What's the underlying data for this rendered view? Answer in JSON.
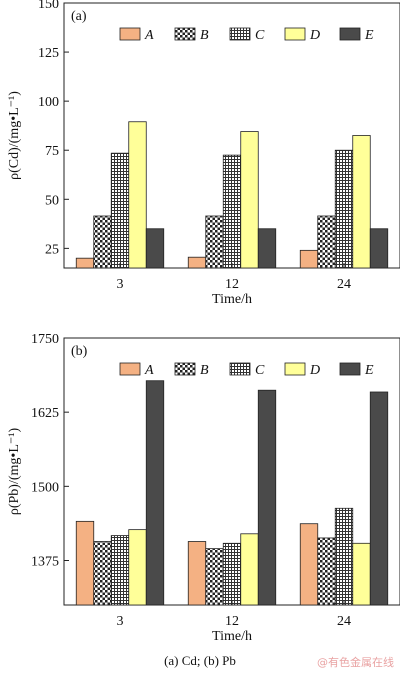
{
  "figure_caption": "(a) Cd; (b) Pb",
  "watermark": "@有色金属在线",
  "chart_data": [
    {
      "type": "bar",
      "panel_label": "(a)",
      "title": "",
      "xlabel": "Time/h",
      "ylabel": "ρ(Cd)/(mg•L⁻¹)",
      "categories": [
        "3",
        "12",
        "24"
      ],
      "ylim": [
        15,
        150
      ],
      "yticks": [
        25,
        50,
        75,
        100,
        125,
        150
      ],
      "legend_position": "top",
      "grid": false,
      "series": [
        {
          "name": "A",
          "color": "#f4b183",
          "pattern": "solid",
          "values": [
            20,
            20.5,
            24
          ]
        },
        {
          "name": "B",
          "color": "#ffffff",
          "pattern": "checker",
          "values": [
            41.5,
            41.5,
            41.5
          ]
        },
        {
          "name": "C",
          "color": "#ffffff",
          "pattern": "grid",
          "values": [
            73.5,
            72.5,
            75
          ]
        },
        {
          "name": "D",
          "color": "#ffff99",
          "pattern": "solid",
          "values": [
            89.5,
            84.5,
            82.5
          ]
        },
        {
          "name": "E",
          "color": "#4a4a4a",
          "pattern": "solid",
          "values": [
            35,
            35,
            35
          ]
        }
      ]
    },
    {
      "type": "bar",
      "panel_label": "(b)",
      "title": "",
      "xlabel": "Time/h",
      "ylabel": "ρ(Pb)/(mg•L⁻¹)",
      "categories": [
        "3",
        "12",
        "24"
      ],
      "ylim": [
        1300,
        1750
      ],
      "yticks": [
        1375,
        1500,
        1625,
        1750
      ],
      "legend_position": "top",
      "grid": false,
      "series": [
        {
          "name": "A",
          "color": "#f4b183",
          "pattern": "solid",
          "values": [
            1441,
            1407,
            1437
          ]
        },
        {
          "name": "B",
          "color": "#ffffff",
          "pattern": "checker",
          "values": [
            1407,
            1395,
            1413
          ]
        },
        {
          "name": "C",
          "color": "#ffffff",
          "pattern": "grid",
          "values": [
            1417,
            1404,
            1463
          ]
        },
        {
          "name": "D",
          "color": "#ffff99",
          "pattern": "solid",
          "values": [
            1427,
            1420,
            1404
          ]
        },
        {
          "name": "E",
          "color": "#4a4a4a",
          "pattern": "solid",
          "values": [
            1678,
            1662,
            1659
          ]
        }
      ]
    }
  ]
}
